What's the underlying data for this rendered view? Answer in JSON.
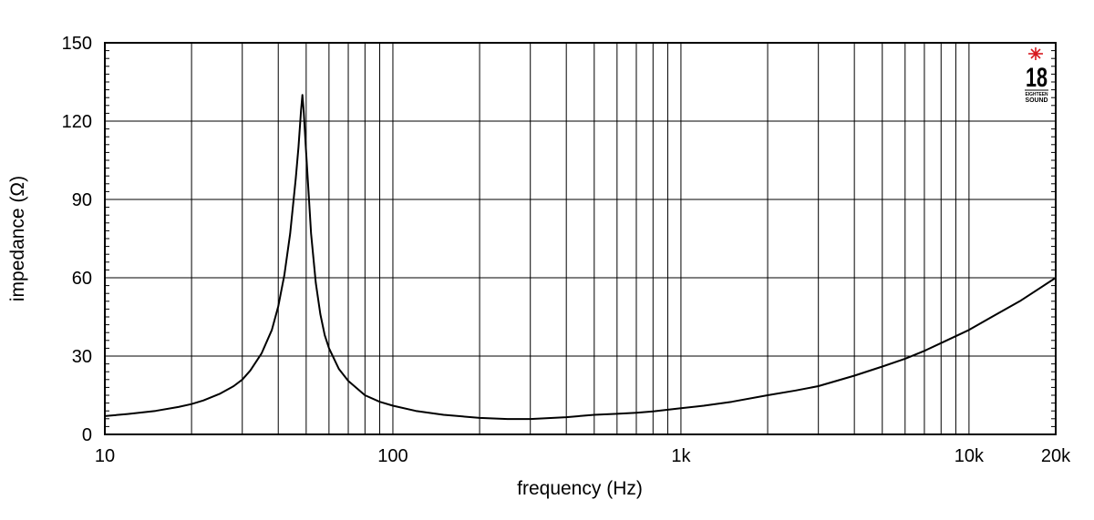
{
  "chart_data": {
    "type": "line",
    "title": "",
    "xlabel": "frequency (Hz)",
    "ylabel": "impedance (Ω)",
    "x_scale": "log",
    "xlim": [
      10,
      20000
    ],
    "ylim": [
      0,
      150
    ],
    "grid": true,
    "x_ticks": [
      {
        "value": 10,
        "label": "10"
      },
      {
        "value": 100,
        "label": "100"
      },
      {
        "value": 1000,
        "label": "1k"
      },
      {
        "value": 10000,
        "label": "10k"
      },
      {
        "value": 20000,
        "label": "20k"
      }
    ],
    "y_ticks": [
      {
        "value": 0,
        "label": "0"
      },
      {
        "value": 30,
        "label": "30"
      },
      {
        "value": 60,
        "label": "60"
      },
      {
        "value": 90,
        "label": "90"
      },
      {
        "value": 120,
        "label": "120"
      },
      {
        "value": 150,
        "label": "150"
      }
    ],
    "x_gridlines": [
      10,
      20,
      30,
      40,
      50,
      60,
      70,
      80,
      90,
      100,
      200,
      300,
      400,
      500,
      600,
      700,
      800,
      900,
      1000,
      2000,
      3000,
      4000,
      5000,
      6000,
      7000,
      8000,
      9000,
      10000,
      20000
    ],
    "y_gridlines": [
      0,
      30,
      60,
      90,
      120,
      150
    ],
    "series": [
      {
        "x": [
          10,
          12,
          15,
          18,
          20,
          22,
          25,
          28,
          30,
          32,
          35,
          38,
          40,
          42,
          44,
          46,
          47,
          48,
          48.5,
          49,
          50,
          51,
          52,
          54,
          56,
          58,
          60,
          65,
          70,
          80,
          90,
          100,
          120,
          150,
          200,
          250,
          300,
          400,
          500,
          600,
          700,
          800,
          1000,
          1200,
          1500,
          2000,
          2500,
          3000,
          4000,
          5000,
          6000,
          7000,
          8000,
          10000,
          12000,
          15000,
          20000
        ],
        "y": [
          7,
          7.8,
          9,
          10.5,
          11.6,
          13,
          15.5,
          18.5,
          21,
          24.5,
          31,
          40,
          49,
          61,
          77,
          98,
          110,
          124,
          130,
          124,
          108,
          92,
          77,
          58,
          46,
          38,
          33,
          25,
          20.5,
          15,
          12.5,
          11,
          9,
          7.5,
          6.3,
          5.9,
          5.9,
          6.6,
          7.5,
          7.9,
          8.3,
          8.8,
          10,
          11,
          12.5,
          15,
          16.8,
          18.5,
          22.5,
          26,
          29,
          32,
          35,
          40,
          45,
          51,
          60
        ]
      }
    ],
    "color": "#000000"
  },
  "logo": {
    "number": "18",
    "line1": "EIGHTEEN",
    "line2": "SOUND",
    "star_color": "#d7191f"
  }
}
